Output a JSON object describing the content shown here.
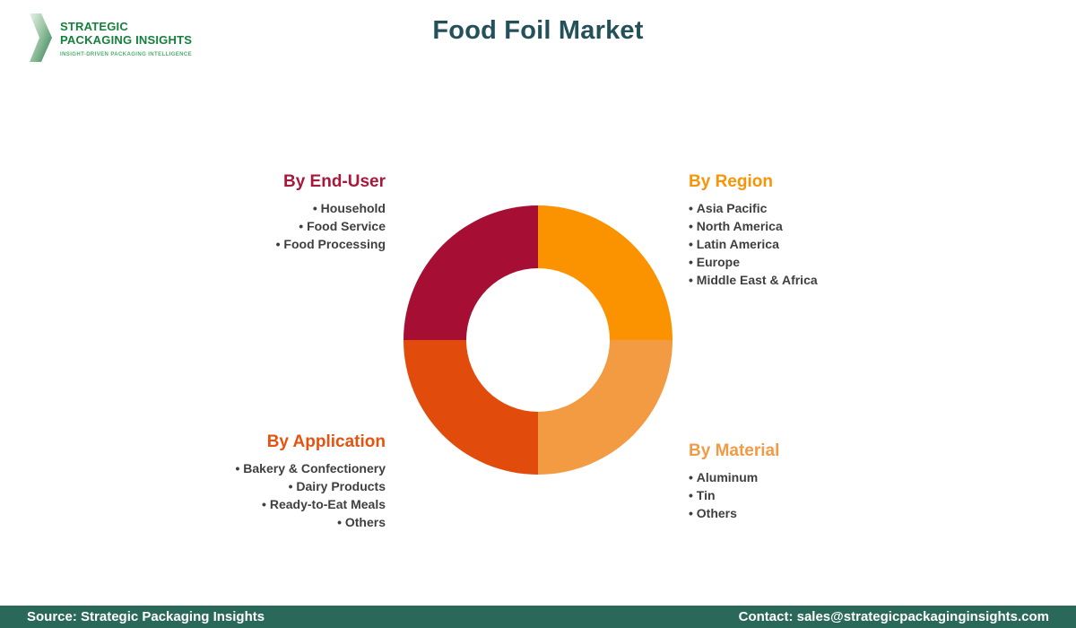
{
  "header": {
    "logo": {
      "line1": "STRATEGIC",
      "line2": "PACKAGING INSIGHTS",
      "tagline": "INSIGHT-DRIVEN PACKAGING INTELLIGENCE"
    },
    "title": "Food Foil Market"
  },
  "palette": {
    "title_text": "#24505A",
    "item_text": "#3F3F3F",
    "footer_bg": "#2A685A",
    "logo_green": "#15803C",
    "logo_tagline_green": "#4FAE6B"
  },
  "chart_data": {
    "type": "pie",
    "subtype": "donut",
    "title": "Food Foil Market",
    "start_angle_deg": 0,
    "direction": "clockwise",
    "inner_radius_ratio": 0.53,
    "note": "Four equal quadrants; no numeric values displayed on chart",
    "segments": [
      {
        "label": "By Region",
        "value": 25,
        "color": "#FB9300"
      },
      {
        "label": "By Material",
        "value": 25,
        "color": "#F29B43"
      },
      {
        "label": "By Application",
        "value": 25,
        "color": "#E14B0C"
      },
      {
        "label": "By End-User",
        "value": 25,
        "color": "#A60F33"
      }
    ]
  },
  "categories": [
    {
      "id": "end-user",
      "title": "By End-User",
      "color": "#A8183A",
      "align": "right",
      "items": [
        "Household",
        "Food Service",
        "Food Processing"
      ]
    },
    {
      "id": "region",
      "title": "By Region",
      "color": "#F89408",
      "align": "left",
      "items": [
        "Asia Pacific",
        "North America",
        "Latin America",
        "Europe",
        "Middle East & Africa"
      ]
    },
    {
      "id": "application",
      "title": "By Application",
      "color": "#E4530F",
      "align": "right",
      "items": [
        "Bakery & Confectionery",
        "Dairy Products",
        "Ready-to-Eat Meals",
        "Others"
      ]
    },
    {
      "id": "material",
      "title": "By Material",
      "color": "#F29B47",
      "align": "left",
      "items": [
        "Aluminum",
        "Tin",
        "Others"
      ]
    }
  ],
  "footer": {
    "source": "Source: Strategic Packaging Insights",
    "contact": "Contact: sales@strategicpackaginginsights.com"
  }
}
